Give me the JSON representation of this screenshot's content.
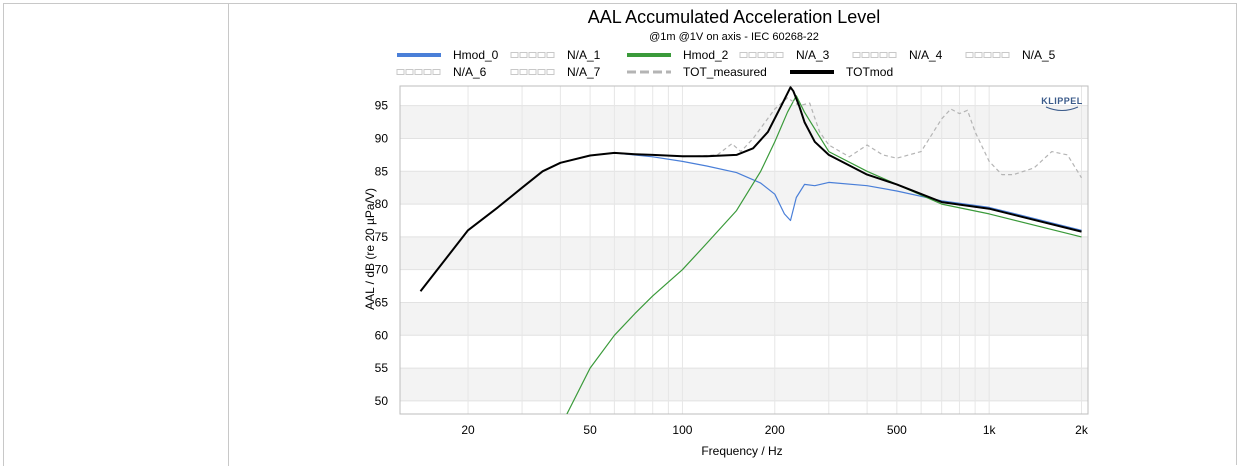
{
  "chart_data": {
    "type": "line",
    "title": "AAL Accumulated Acceleration Level",
    "subtitle": "@1m @1V on axis - IEC 60268-22",
    "xlabel": "Frequency / Hz",
    "ylabel": "AAL / dB (re 20 µPa/V)",
    "xscale": "log",
    "xlim": [
      12,
      2100
    ],
    "ylim": [
      48,
      98
    ],
    "xticks": [
      20,
      50,
      100,
      200,
      500,
      1000,
      2000
    ],
    "xtick_labels": [
      "20",
      "50",
      "100",
      "200",
      "500",
      "1k",
      "2k"
    ],
    "yticks": [
      50,
      55,
      60,
      65,
      70,
      75,
      80,
      85,
      90,
      95
    ],
    "ytick_labels": [
      "50",
      "55",
      "60",
      "65",
      "70",
      "75",
      "80",
      "85",
      "90",
      "95"
    ],
    "grid": true,
    "logo": "KLIPPEL",
    "legend": {
      "placement": "top",
      "entries": [
        {
          "name": "Hmod_0",
          "color": "#4a7fd8",
          "style": "solid"
        },
        {
          "name": "N/A_1",
          "color": "#c8c8c8",
          "style": "hollow"
        },
        {
          "name": "Hmod_2",
          "color": "#3a9a3a",
          "style": "solid"
        },
        {
          "name": "N/A_3",
          "color": "#c8c8c8",
          "style": "hollow"
        },
        {
          "name": "N/A_4",
          "color": "#c8c8c8",
          "style": "hollow"
        },
        {
          "name": "N/A_5",
          "color": "#c8c8c8",
          "style": "hollow"
        },
        {
          "name": "N/A_6",
          "color": "#c8c8c8",
          "style": "hollow"
        },
        {
          "name": "N/A_7",
          "color": "#c8c8c8",
          "style": "hollow"
        },
        {
          "name": "TOT_measured",
          "color": "#b4b4b4",
          "style": "dashed"
        },
        {
          "name": "TOTmod",
          "color": "#000000",
          "style": "solid"
        }
      ]
    },
    "series": [
      {
        "name": "Hmod_0",
        "color": "#4a7fd8",
        "width": 1.2,
        "dash": "",
        "x": [
          60,
          80,
          100,
          120,
          150,
          180,
          200,
          215,
          225,
          235,
          250,
          270,
          300,
          400,
          500,
          700,
          1000,
          2000
        ],
        "y": [
          87.8,
          87.2,
          86.5,
          85.8,
          84.8,
          83.2,
          81.5,
          78.5,
          77.5,
          81.0,
          83.0,
          82.8,
          83.3,
          82.8,
          82.0,
          80.5,
          79.5,
          76.0
        ]
      },
      {
        "name": "Hmod_2",
        "color": "#3a9a3a",
        "width": 1.2,
        "dash": "",
        "x": [
          42,
          50,
          60,
          70,
          80,
          100,
          120,
          150,
          180,
          200,
          220,
          235,
          250,
          300,
          400,
          500,
          700,
          1000,
          2000
        ],
        "y": [
          48,
          55,
          60,
          63.3,
          66,
          70,
          74,
          79,
          85,
          89.5,
          94,
          96.5,
          94,
          88,
          85,
          83,
          80,
          78.5,
          75
        ]
      },
      {
        "name": "TOT_measured",
        "color": "#b4b4b4",
        "width": 1.2,
        "dash": "4,3",
        "x": [
          100,
          130,
          145,
          155,
          170,
          200,
          220,
          240,
          260,
          280,
          300,
          350,
          400,
          450,
          500,
          600,
          700,
          750,
          800,
          850,
          900,
          1000,
          1100,
          1200,
          1400,
          1600,
          1800,
          2000
        ],
        "y": [
          87.2,
          87.5,
          89.2,
          88.0,
          90.0,
          94.5,
          96.2,
          95.0,
          95.4,
          91.0,
          89.0,
          87.2,
          89.0,
          87.5,
          87.0,
          88.0,
          93.0,
          94.5,
          93.8,
          94.3,
          91.0,
          86.5,
          84.5,
          84.5,
          85.5,
          88.0,
          87.5,
          84.0
        ]
      },
      {
        "name": "TOTmod",
        "color": "#000000",
        "width": 2,
        "dash": "",
        "x": [
          14,
          20,
          25,
          30,
          35,
          40,
          50,
          60,
          70,
          80,
          100,
          120,
          150,
          170,
          190,
          210,
          225,
          230,
          240,
          250,
          270,
          300,
          400,
          500,
          700,
          1000,
          2000
        ],
        "y": [
          66.7,
          76,
          79.5,
          82.5,
          85,
          86.3,
          87.4,
          87.8,
          87.6,
          87.5,
          87.3,
          87.3,
          87.5,
          88.5,
          91.0,
          95.0,
          97.8,
          97.2,
          95.0,
          92.5,
          89.5,
          87.5,
          84.5,
          83.0,
          80.3,
          79.3,
          75.8
        ]
      }
    ]
  }
}
